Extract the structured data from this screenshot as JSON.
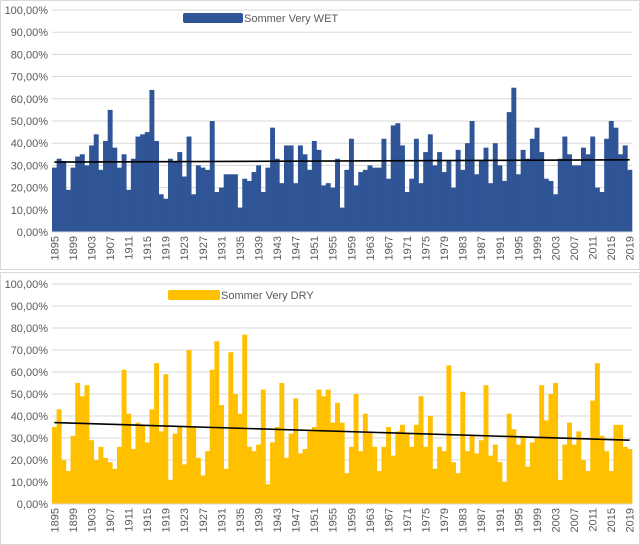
{
  "chart_data": [
    {
      "type": "bar",
      "title": "",
      "legend": "Sommer Very WET",
      "legend_position": "top-center",
      "color": "#2F5597",
      "trendline": {
        "start": 31.5,
        "end": 32.5,
        "color": "#000000"
      },
      "x_start": 1895,
      "x_tick_step": 4,
      "ylim": [
        0,
        100
      ],
      "y_ticks": [
        "0,00%",
        "10,00%",
        "20,00%",
        "30,00%",
        "40,00%",
        "50,00%",
        "60,00%",
        "70,00%",
        "80,00%",
        "90,00%",
        "100,00%"
      ],
      "values": [
        29,
        33,
        32,
        19,
        29,
        34,
        35,
        30,
        39,
        44,
        28,
        41,
        55,
        38,
        29,
        35,
        19,
        33,
        43,
        44,
        45,
        64,
        41,
        17,
        15,
        33,
        32,
        36,
        25,
        43,
        17,
        30,
        29,
        28,
        50,
        18,
        20,
        26,
        26,
        26,
        11,
        24,
        23,
        27,
        30,
        18,
        29,
        47,
        33,
        22,
        39,
        39,
        22,
        39,
        35,
        28,
        41,
        37,
        21,
        22,
        20,
        33,
        11,
        28,
        42,
        21,
        27,
        28,
        30,
        29,
        29,
        42,
        24,
        48,
        49,
        39,
        18,
        24,
        42,
        22,
        36,
        44,
        30,
        36,
        27,
        32,
        20,
        37,
        28,
        40,
        50,
        26,
        32,
        38,
        22,
        40,
        30,
        23,
        54,
        65,
        26,
        37,
        33,
        42,
        47,
        36,
        24,
        23,
        17,
        33,
        43,
        35,
        30,
        30,
        38,
        35,
        43,
        20,
        18,
        42,
        50,
        47,
        35,
        39,
        28
      ]
    },
    {
      "type": "bar",
      "title": "",
      "legend": "Sommer Very DRY",
      "legend_position": "top-center",
      "color": "#FFC000",
      "trendline": {
        "start": 37,
        "end": 29,
        "color": "#000000"
      },
      "x_start": 1895,
      "x_tick_step": 4,
      "ylim": [
        0,
        100
      ],
      "y_ticks": [
        "0,00%",
        "10,00%",
        "20,00%",
        "30,00%",
        "40,00%",
        "50,00%",
        "60,00%",
        "70,00%",
        "80,00%",
        "90,00%",
        "100,00%"
      ],
      "values": [
        35,
        43,
        20,
        15,
        31,
        55,
        49,
        54,
        29,
        20,
        26,
        21,
        19,
        16,
        26,
        61,
        41,
        25,
        37,
        36,
        28,
        43,
        64,
        33,
        59,
        11,
        32,
        35,
        18,
        70,
        35,
        21,
        13,
        24,
        61,
        74,
        45,
        16,
        69,
        50,
        41,
        77,
        26,
        24,
        27,
        52,
        9,
        28,
        35,
        55,
        21,
        32,
        48,
        23,
        25,
        33,
        35,
        52,
        49,
        52,
        37,
        46,
        37,
        14,
        26,
        50,
        24,
        41,
        33,
        26,
        15,
        26,
        35,
        22,
        33,
        36,
        32,
        26,
        36,
        49,
        26,
        40,
        16,
        26,
        24,
        63,
        19,
        14,
        51,
        24,
        31,
        23,
        29,
        54,
        22,
        27,
        19,
        10,
        41,
        34,
        27,
        31,
        17,
        28,
        30,
        54,
        38,
        50,
        55,
        11,
        27,
        37,
        27,
        33,
        20,
        15,
        47,
        64,
        31,
        24,
        15,
        36,
        36,
        26,
        25
      ]
    }
  ]
}
